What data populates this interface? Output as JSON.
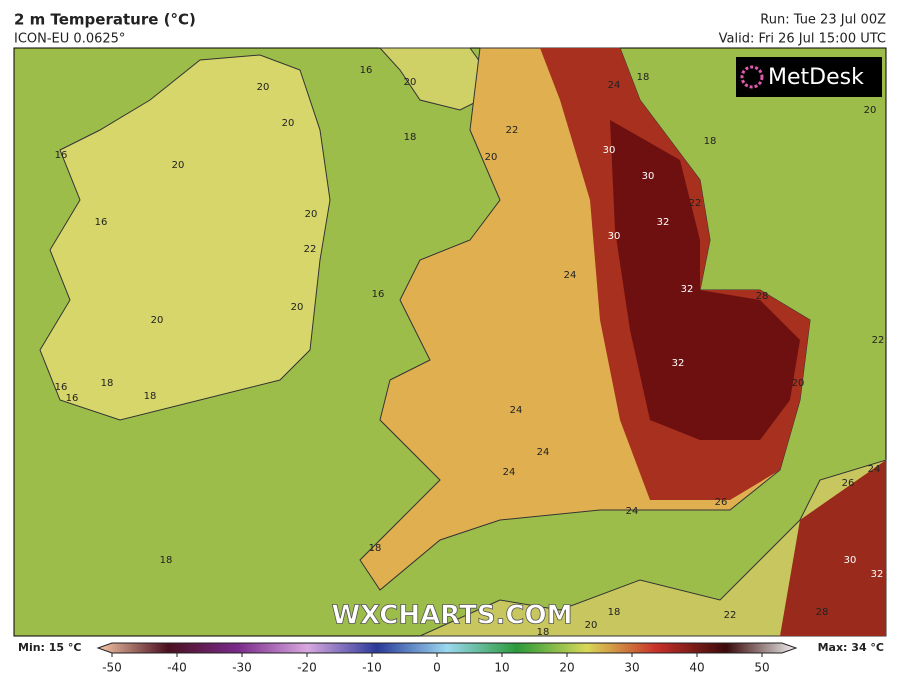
{
  "header": {
    "title": "2 m Temperature (°C)",
    "model": "ICON-EU 0.0625°",
    "run": "Run: Tue 23 Jul 00Z",
    "valid": "Valid: Fri 26 Jul 15:00 UTC"
  },
  "logo": "MetDesk",
  "watermark": "WXCHARTS.COM",
  "contour_labels": [
    20,
    20,
    20,
    16,
    16,
    20,
    22,
    20,
    20,
    18,
    16,
    16,
    18,
    16,
    20,
    18,
    22,
    20,
    16,
    24,
    24,
    24,
    24,
    18,
    24,
    18,
    30,
    30,
    32,
    30,
    22,
    32,
    32,
    28,
    20,
    20,
    22,
    26,
    24,
    24,
    26,
    30,
    32,
    28,
    22,
    18,
    20,
    18,
    18,
    18
  ],
  "legend": {
    "min": "Min: 15 °C",
    "max": "Max: 34 °C",
    "ticks": [
      -50,
      -40,
      -30,
      -20,
      -10,
      0,
      10,
      20,
      30,
      40,
      50
    ]
  }
}
